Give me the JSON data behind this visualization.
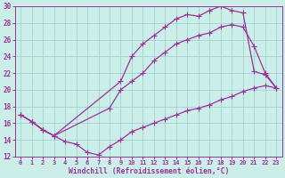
{
  "xlabel": "Windchill (Refroidissement éolien,°C)",
  "xlim": [
    -0.5,
    23.5
  ],
  "ylim": [
    12,
    30
  ],
  "xticks": [
    0,
    1,
    2,
    3,
    4,
    5,
    6,
    7,
    8,
    9,
    10,
    11,
    12,
    13,
    14,
    15,
    16,
    17,
    18,
    19,
    20,
    21,
    22,
    23
  ],
  "yticks": [
    12,
    14,
    16,
    18,
    20,
    22,
    24,
    26,
    28,
    30
  ],
  "background_color": "#cceee8",
  "grid_color": "#99cccc",
  "line_color": "#993399",
  "line_top_x": [
    0,
    1,
    2,
    3,
    9,
    10,
    11,
    12,
    13,
    14,
    15,
    16,
    17,
    18,
    19,
    20,
    21,
    22,
    23
  ],
  "line_top_y": [
    17.0,
    16.2,
    15.2,
    14.5,
    21.0,
    24.0,
    25.5,
    26.5,
    27.5,
    28.5,
    29.0,
    28.8,
    29.5,
    30.0,
    29.5,
    29.2,
    22.2,
    21.8,
    20.2
  ],
  "line_mid_x": [
    0,
    1,
    2,
    3,
    8,
    9,
    10,
    11,
    12,
    13,
    14,
    15,
    16,
    17,
    18,
    19,
    20,
    21,
    22,
    23
  ],
  "line_mid_y": [
    17.0,
    16.2,
    15.2,
    14.5,
    17.8,
    20.0,
    21.0,
    22.0,
    23.5,
    24.5,
    25.5,
    26.0,
    26.5,
    26.8,
    27.5,
    27.8,
    27.5,
    25.2,
    22.0,
    20.2
  ],
  "line_bot_x": [
    0,
    1,
    2,
    3,
    4,
    5,
    6,
    7,
    8,
    9,
    10,
    11,
    12,
    13,
    14,
    15,
    16,
    17,
    18,
    19,
    20,
    21,
    22,
    23
  ],
  "line_bot_y": [
    17.0,
    16.2,
    15.2,
    14.5,
    13.8,
    13.5,
    12.5,
    12.2,
    13.2,
    14.0,
    15.0,
    15.5,
    16.0,
    16.5,
    17.0,
    17.5,
    17.8,
    18.2,
    18.8,
    19.2,
    19.8,
    20.2,
    20.5,
    20.2
  ],
  "marker_size": 2.5,
  "linewidth": 0.9
}
